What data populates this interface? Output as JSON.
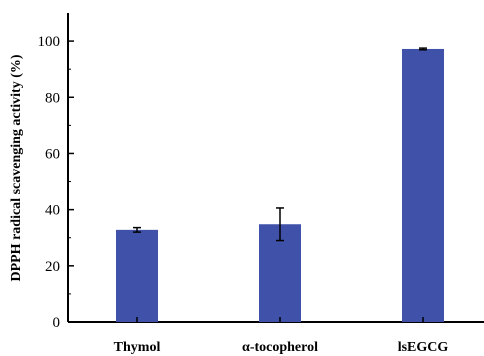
{
  "chart_data": {
    "type": "bar",
    "categories": [
      "Thymol",
      "α-tocopherol",
      "lsEGCG"
    ],
    "values": [
      32.8,
      34.8,
      97.2
    ],
    "errors": [
      0.8,
      5.8,
      0.3
    ],
    "title": "",
    "xlabel": "",
    "ylabel": "DPPH radical scavenging activity (%)",
    "ylim": [
      0,
      110
    ],
    "yticks": [
      0,
      20,
      40,
      60,
      80,
      100
    ],
    "bar_color": "#3f51a8",
    "grid": false,
    "legend": "none"
  }
}
